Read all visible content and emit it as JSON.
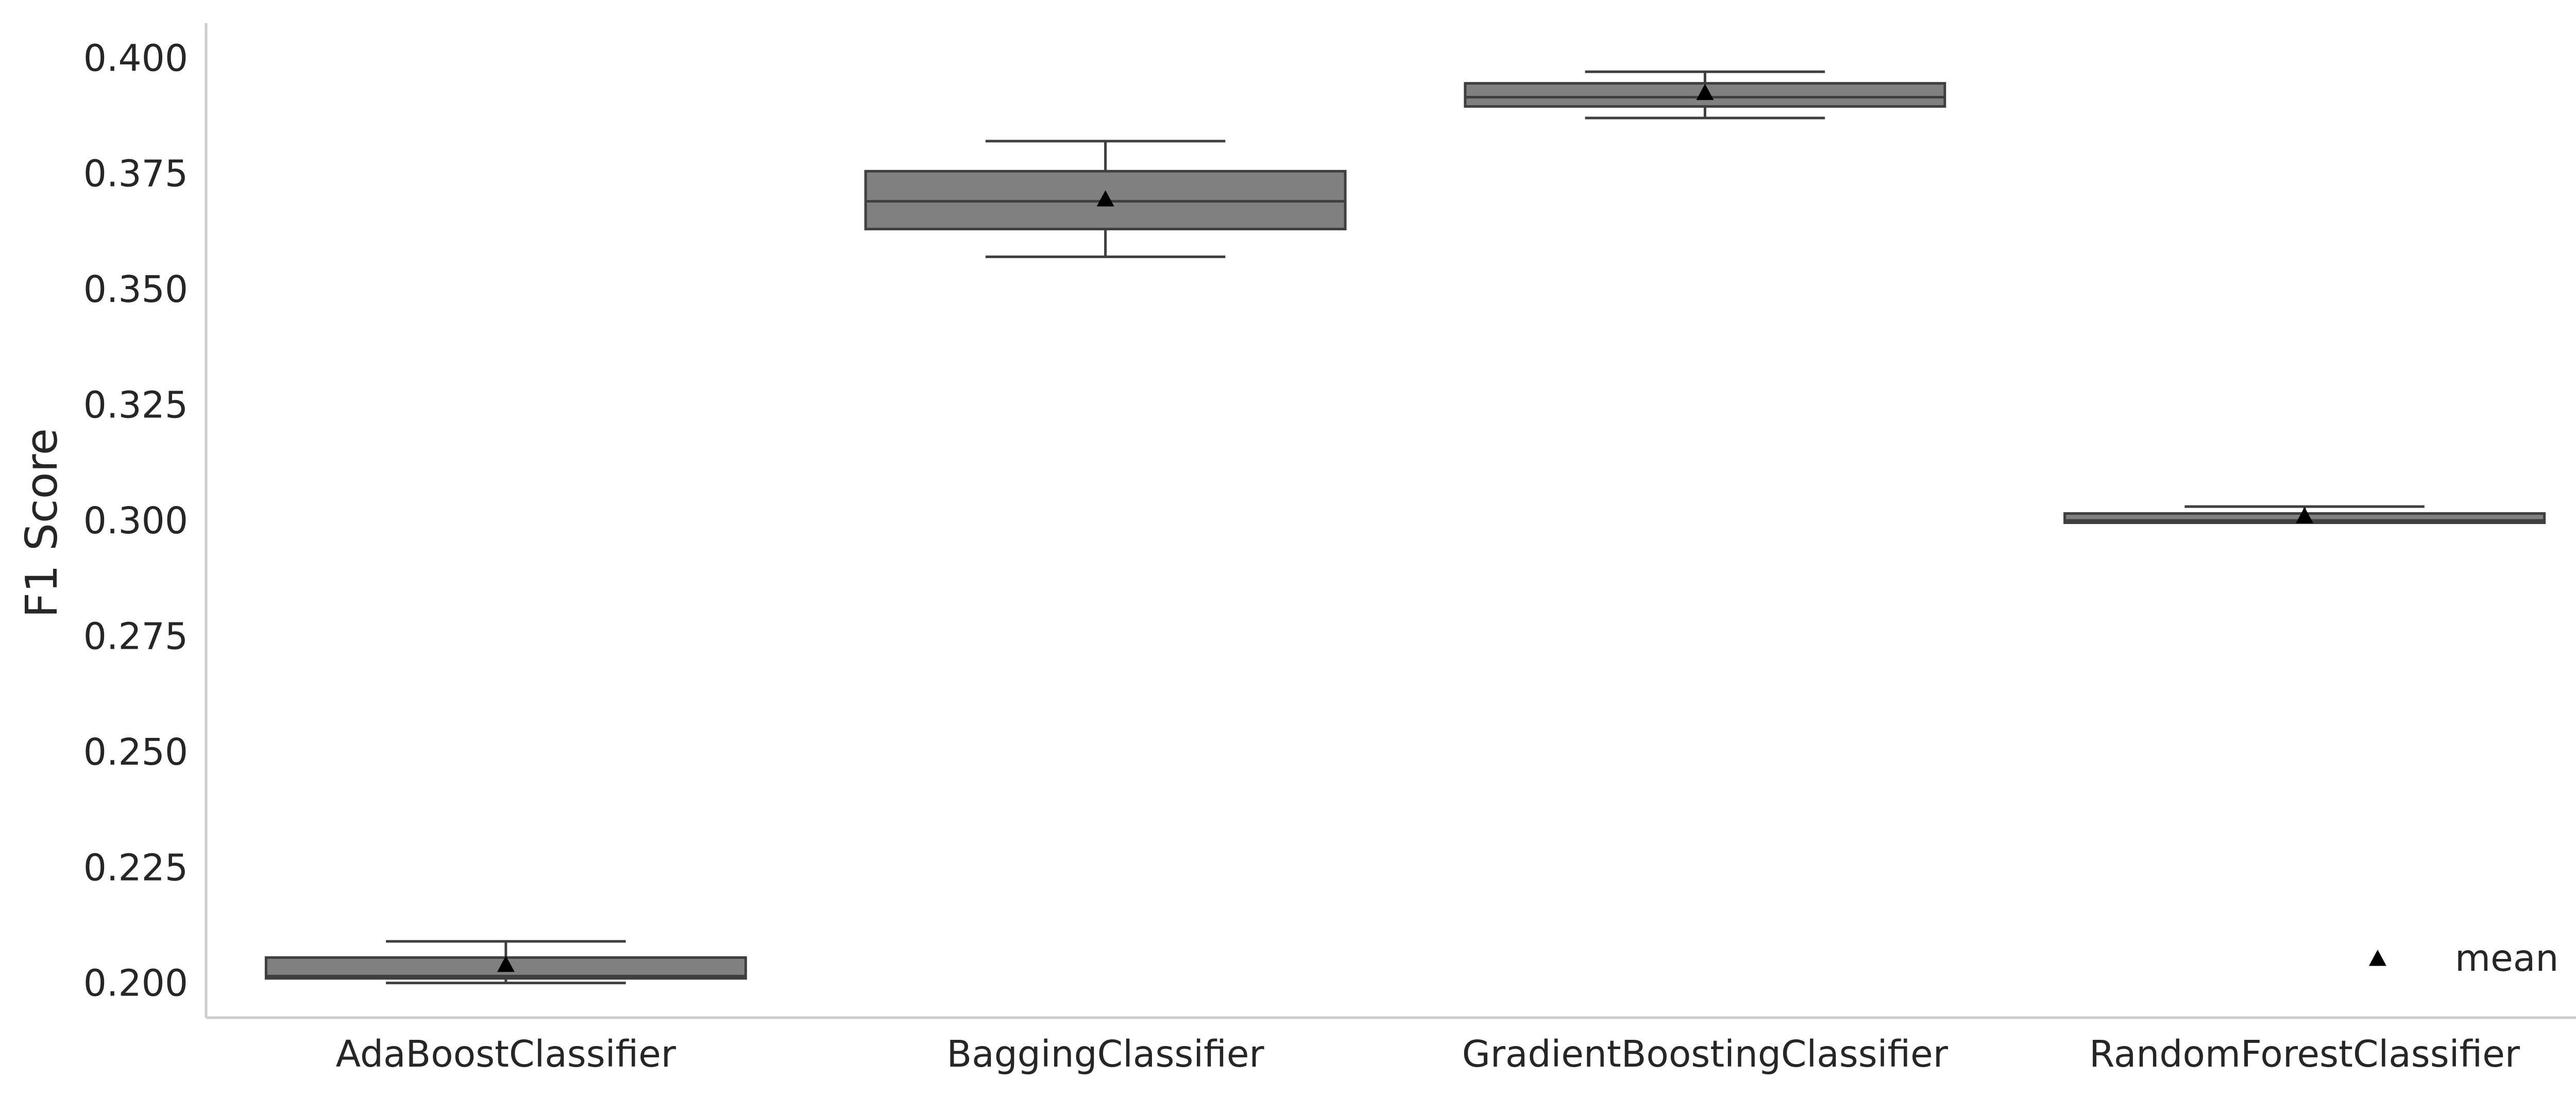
{
  "chart_data": {
    "type": "box",
    "title": "",
    "xlabel": "",
    "ylabel": "F1 Score",
    "ylim": [
      0.1925,
      0.4075
    ],
    "yticks": [
      0.2,
      0.225,
      0.25,
      0.275,
      0.3,
      0.325,
      0.35,
      0.375,
      0.4
    ],
    "ytick_labels": [
      "0.200",
      "0.225",
      "0.250",
      "0.275",
      "0.300",
      "0.325",
      "0.350",
      "0.375",
      "0.400"
    ],
    "categories": [
      "AdaBoostClassifier",
      "BaggingClassifier",
      "GradientBoostingClassifier",
      "RandomForestClassifier"
    ],
    "boxes": [
      {
        "whisker_low": 0.2,
        "q1": 0.201,
        "median": 0.2015,
        "q3": 0.2055,
        "whisker_high": 0.209,
        "mean": 0.204
      },
      {
        "whisker_low": 0.357,
        "q1": 0.363,
        "median": 0.369,
        "q3": 0.3755,
        "whisker_high": 0.382,
        "mean": 0.3695
      },
      {
        "whisker_low": 0.387,
        "q1": 0.3895,
        "median": 0.3915,
        "q3": 0.3945,
        "whisker_high": 0.397,
        "mean": 0.3925
      },
      {
        "whisker_low": 0.2995,
        "q1": 0.2995,
        "median": 0.3,
        "q3": 0.3015,
        "whisker_high": 0.303,
        "mean": 0.301
      }
    ],
    "legend": {
      "placement": "lower-right",
      "entries": [
        "mean"
      ]
    },
    "grid": false,
    "colors": {
      "box_fill": "#808080",
      "box_edge": "#3f3f3f",
      "mean_marker": "#000000",
      "axis": "#cccccc"
    }
  }
}
